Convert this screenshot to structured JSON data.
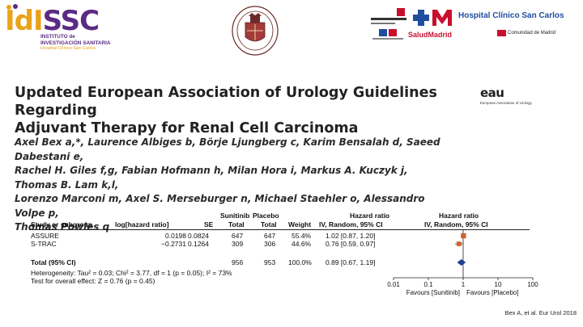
{
  "header": {
    "idissc": {
      "name_part1": "IdI",
      "name_part2": "SSC",
      "line1": "INSTITUTO de",
      "line2": "INVESTIGACIÓN SANITARIA",
      "line3": "Hospital Clínico San Carlos"
    },
    "hospital": {
      "saludmadrid": "SaludMadrid",
      "name": "Hospital Clínico San Carlos",
      "comunidad": "Comunidad de Madrid"
    },
    "eau": {
      "mark": "eau",
      "sub": "European Association of Urology"
    },
    "colors": {
      "idissc_orange": "#e9a21a",
      "idissc_purple": "#5b2b84",
      "madrid_red": "#c8102e",
      "hospital_blue": "#1f4e9e"
    }
  },
  "article": {
    "title_line1": "Updated European Association of Urology Guidelines Regarding",
    "title_line2": "Adjuvant Therapy for Renal Cell Carcinoma",
    "authors_line1": "Axel Bex a,*, Laurence Albiges b, Börje Ljungberg c, Karim Bensalah d, Saeed Dabestani e,",
    "authors_line2": "Rachel H. Giles f,g, Fabian Hofmann h, Milan Hora i, Markus A. Kuczyk j, Thomas B. Lam k,l,",
    "authors_line3": "Lorenzo Marconi m, Axel S. Merseburger n, Michael Staehler o, Alessandro Volpe p,",
    "authors_line4": "Thomas Powles q"
  },
  "forest_plot": {
    "headers": {
      "study": "Study or subgroup",
      "loghr": "log[hazard ratio]",
      "se": "SE",
      "sunitinib": "Sunitinib",
      "placebo": "Placebo",
      "total1": "Total",
      "total2": "Total",
      "weight": "Weight",
      "hr_title": "Hazard ratio",
      "hr_method": "IV, Random, 95% CI",
      "hr_plot_title": "Hazard ratio",
      "hr_plot_method": "IV, Random, 95% CI"
    },
    "rows": [
      {
        "study": "ASSURE",
        "loghr": "0.0198",
        "se": "0.0824",
        "sunitinib": "647",
        "placebo": "647",
        "weight": "55.4%",
        "hr": "1.02 [0.87, 1.20]"
      },
      {
        "study": "S-TRAC",
        "loghr": "−0.2731",
        "se": "0.1264",
        "sunitinib": "309",
        "placebo": "306",
        "weight": "44.6%",
        "hr": "0.76 [0.59, 0.97]"
      }
    ],
    "total": {
      "label": "Total (95% CI)",
      "sunitinib": "956",
      "placebo": "953",
      "weight": "100.0%",
      "hr": "0.89 [0.67, 1.19]"
    },
    "heterogeneity": "Heterogeneity: Tau² = 0.03; Chi² = 3.77, df = 1 (p = 0.05); I² = 73%",
    "overall_effect": "Test for overall effect: Z = 0.76 (p = 0.45)",
    "axis_ticks": [
      "0.01",
      "0.1",
      "1",
      "10",
      "100"
    ],
    "favours_left": "Favours [Sunitinib]",
    "favours_right": "Favours [Placebo]",
    "colors": {
      "square": "#d0622a",
      "diamond": "#1f3f8f"
    }
  },
  "chart_data": {
    "type": "scatter",
    "title": "Hazard ratio",
    "xlabel": "IV, Random, 95% CI",
    "xscale": "log",
    "xlim": [
      0.01,
      100
    ],
    "reference_line": 1,
    "series": [
      {
        "name": "ASSURE",
        "hr": 1.02,
        "ci": [
          0.87,
          1.2
        ],
        "weight": 55.4
      },
      {
        "name": "S-TRAC",
        "hr": 0.76,
        "ci": [
          0.59,
          0.97
        ],
        "weight": 44.6
      },
      {
        "name": "Total (95% CI)",
        "hr": 0.89,
        "ci": [
          0.67,
          1.19
        ],
        "weight": 100.0
      }
    ]
  },
  "citation": "Bex A, et al. Eur Urol 2018"
}
